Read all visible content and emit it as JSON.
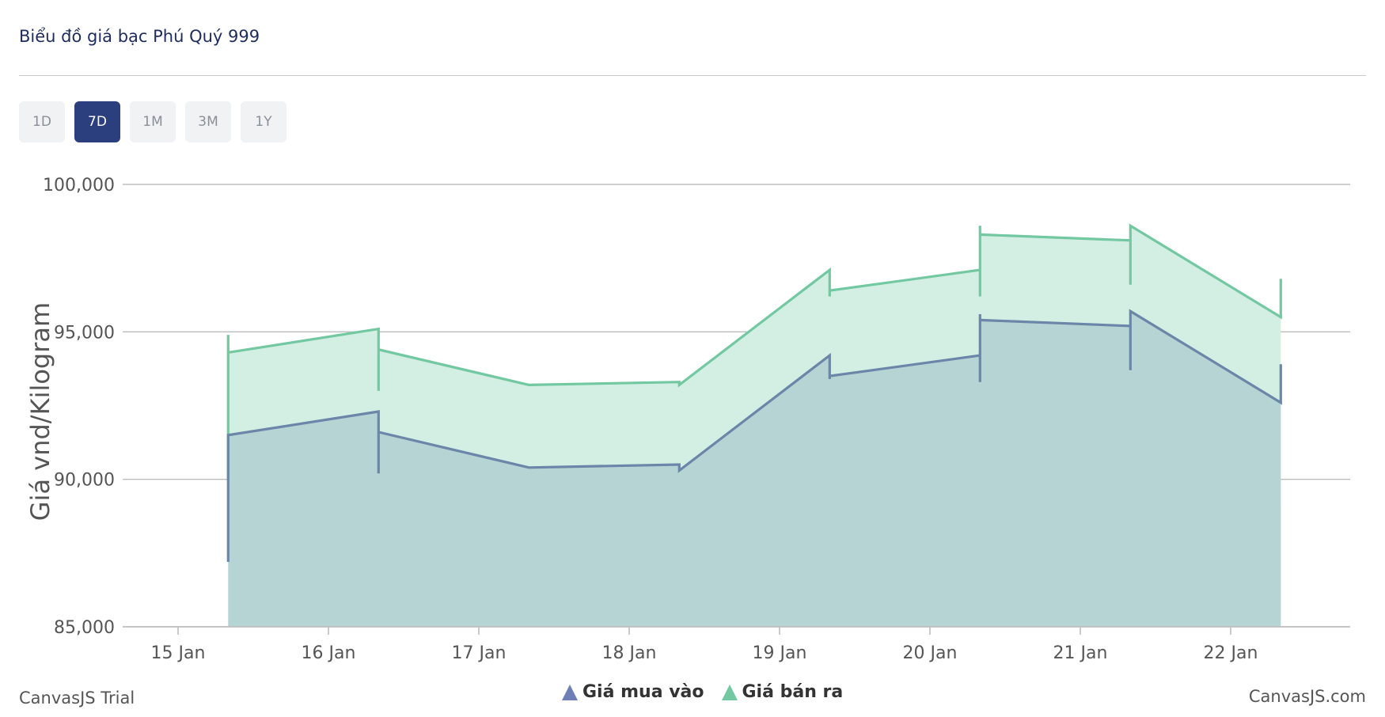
{
  "header": {
    "title": "Biểu đồ giá bạc Phú Quý 999"
  },
  "ranges": [
    {
      "label": "1D",
      "active": false
    },
    {
      "label": "7D",
      "active": true
    },
    {
      "label": "1M",
      "active": false
    },
    {
      "label": "3M",
      "active": false
    },
    {
      "label": "1Y",
      "active": false
    }
  ],
  "chart_data": {
    "type": "area",
    "ylabel": "Giá vnd/Kilogram",
    "xlabel": "",
    "ylim": [
      85000,
      100000
    ],
    "yticks": [
      85000,
      90000,
      95000,
      100000
    ],
    "ytick_labels": [
      "85,000",
      "90,000",
      "95,000",
      "100,000"
    ],
    "xticks": [
      "15 Jan",
      "16 Jan",
      "17 Jan",
      "18 Jan",
      "19 Jan",
      "20 Jan",
      "21 Jan",
      "22 Jan"
    ],
    "grid": true,
    "legend_position": "bottom-center",
    "series": [
      {
        "name": "Giá mua vào",
        "color": "#6b86a8",
        "fill": "#b6d4d3",
        "points": [
          [
            "2025-01-15 08:00",
            87200
          ],
          [
            "2025-01-15 08:00",
            91500
          ],
          [
            "2025-01-16 08:00",
            92300
          ],
          [
            "2025-01-16 08:00",
            90200
          ],
          [
            "2025-01-16 08:00",
            91600
          ],
          [
            "2025-01-17 08:00",
            90400
          ],
          [
            "2025-01-18 08:00",
            90500
          ],
          [
            "2025-01-18 08:00",
            90300
          ],
          [
            "2025-01-19 08:00",
            94200
          ],
          [
            "2025-01-19 08:00",
            93400
          ],
          [
            "2025-01-19 08:00",
            93500
          ],
          [
            "2025-01-20 08:00",
            94200
          ],
          [
            "2025-01-20 08:00",
            93300
          ],
          [
            "2025-01-20 08:00",
            95600
          ],
          [
            "2025-01-20 08:00",
            95400
          ],
          [
            "2025-01-21 08:00",
            95200
          ],
          [
            "2025-01-21 08:00",
            93700
          ],
          [
            "2025-01-21 08:00",
            95700
          ],
          [
            "2025-01-22 08:00",
            92600
          ],
          [
            "2025-01-22 08:00",
            93900
          ]
        ]
      },
      {
        "name": "Giá bán ra",
        "color": "#72c8a0",
        "fill": "#d3efe3",
        "points": [
          [
            "2025-01-15 08:00",
            90000
          ],
          [
            "2025-01-15 08:00",
            94900
          ],
          [
            "2025-01-15 08:00",
            94300
          ],
          [
            "2025-01-16 08:00",
            95100
          ],
          [
            "2025-01-16 08:00",
            93000
          ],
          [
            "2025-01-16 08:00",
            94400
          ],
          [
            "2025-01-17 08:00",
            93200
          ],
          [
            "2025-01-18 08:00",
            93300
          ],
          [
            "2025-01-18 08:00",
            93200
          ],
          [
            "2025-01-19 08:00",
            97100
          ],
          [
            "2025-01-19 08:00",
            96200
          ],
          [
            "2025-01-19 08:00",
            96400
          ],
          [
            "2025-01-20 08:00",
            97100
          ],
          [
            "2025-01-20 08:00",
            96200
          ],
          [
            "2025-01-20 08:00",
            98600
          ],
          [
            "2025-01-20 08:00",
            98300
          ],
          [
            "2025-01-21 08:00",
            98100
          ],
          [
            "2025-01-21 08:00",
            96600
          ],
          [
            "2025-01-21 08:00",
            98600
          ],
          [
            "2025-01-22 08:00",
            95500
          ],
          [
            "2025-01-22 08:00",
            96800
          ]
        ]
      }
    ]
  },
  "credits": {
    "left": "CanvasJS Trial",
    "right": "CanvasJS.com"
  }
}
